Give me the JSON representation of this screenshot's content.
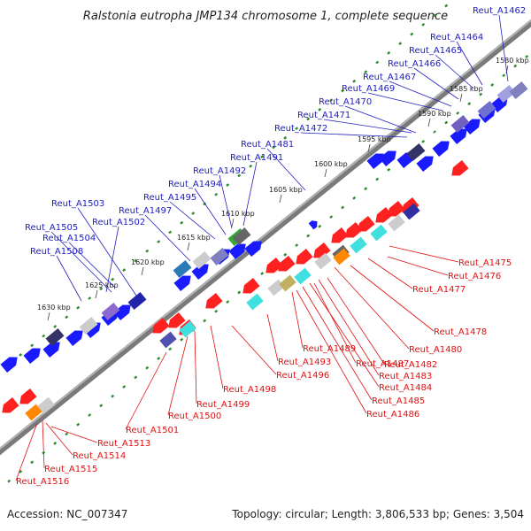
{
  "title": "Ralstonia eutropha JMP134 chromosome 1, complete sequence",
  "footer": {
    "accession": "Accession: NC_007347",
    "topology": "Topology: circular; Length: 3,806,533 bp; Genes: 3,504"
  },
  "colors": {
    "forward_gene": "#1a1aff",
    "reverse_gene": "#ff2020",
    "forward_label": "#2020c0",
    "reverse_label": "#e01010",
    "backbone": "#8c8c8c",
    "tick": "#2e8b2e"
  },
  "scale_labels": [
    "1580 kbp",
    "1585 kbp",
    "1590 kbp",
    "1595 kbp",
    "1600 kbp",
    "1605 kbp",
    "1610 kbp",
    "1615 kbp",
    "1620 kbp",
    "1625 kbp",
    "1630 kbp"
  ],
  "forward_genes": [
    "Reut_A1462",
    "Reut_A1464",
    "Reut_A1465",
    "Reut_A1466",
    "Reut_A1467",
    "Reut_A1469",
    "Reut_A1470",
    "Reut_A1471",
    "Reut_A1472",
    "Reut_A1481",
    "Reut_A1491",
    "Reut_A1492",
    "Reut_A1494",
    "Reut_A1495",
    "Reut_A1497",
    "Reut_A1502",
    "Reut_A1503",
    "Reut_A1504",
    "Reut_A1505",
    "Reut_A1508"
  ],
  "reverse_genes": [
    "Reut_A1475",
    "Reut_A1476",
    "Reut_A1477",
    "Reut_A1478",
    "Reut_A1480",
    "Reut_A1482",
    "Reut_A1483",
    "Reut_A1484",
    "Reut_A1485",
    "Reut_A1486",
    "Reut_A1487",
    "Reut_A1489",
    "Reut_A1493",
    "Reut_A1496",
    "Reut_A1498",
    "Reut_A1499",
    "Reut_A1500",
    "Reut_A1501",
    "Reut_A1513",
    "Reut_A1514",
    "Reut_A1515",
    "Reut_A1516"
  ]
}
